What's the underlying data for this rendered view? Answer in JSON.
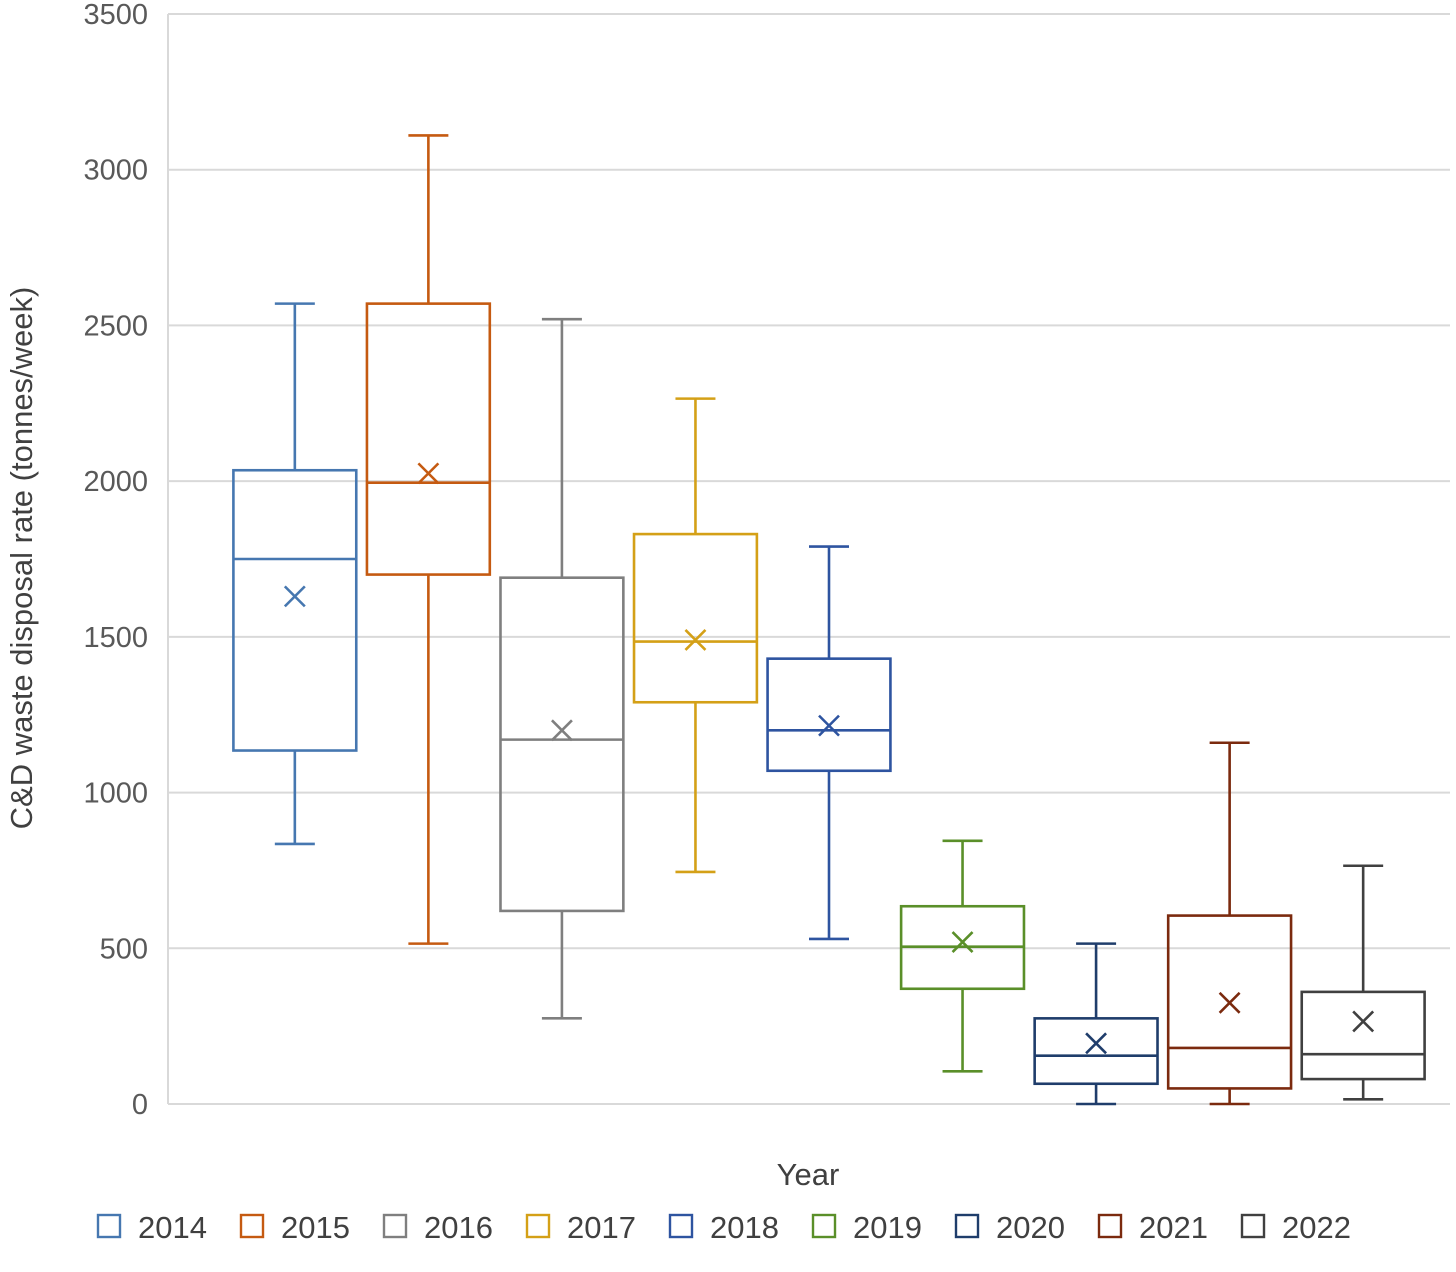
{
  "chart_data": {
    "type": "box",
    "xlabel": "Year",
    "ylabel": "C&D waste disposal rate (tonnes/week)",
    "ylim": [
      0,
      3500
    ],
    "yticks": [
      "0",
      "500",
      "1000",
      "1500",
      "2000",
      "2500",
      "3000",
      "3500"
    ],
    "grid": "horizontal",
    "legend_position": "bottom",
    "series": [
      {
        "name": "2014",
        "color": "#4677B0",
        "min": 835,
        "q1": 1135,
        "median": 1750,
        "q3": 2035,
        "max": 2570,
        "mean": 1630
      },
      {
        "name": "2015",
        "color": "#C55A11",
        "min": 515,
        "q1": 1700,
        "median": 1995,
        "q3": 2570,
        "max": 3110,
        "mean": 2025
      },
      {
        "name": "2016",
        "color": "#7F7F7F",
        "min": 275,
        "q1": 620,
        "median": 1170,
        "q3": 1690,
        "max": 2520,
        "mean": 1200
      },
      {
        "name": "2017",
        "color": "#D4A017",
        "min": 745,
        "q1": 1290,
        "median": 1485,
        "q3": 1830,
        "max": 2265,
        "mean": 1490
      },
      {
        "name": "2018",
        "color": "#2E54A0",
        "min": 530,
        "q1": 1070,
        "median": 1200,
        "q3": 1430,
        "max": 1790,
        "mean": 1215
      },
      {
        "name": "2019",
        "color": "#5A8F29",
        "min": 105,
        "q1": 370,
        "median": 505,
        "q3": 635,
        "max": 845,
        "mean": 520
      },
      {
        "name": "2020",
        "color": "#1F3D6B",
        "min": 0,
        "q1": 65,
        "median": 155,
        "q3": 275,
        "max": 515,
        "mean": 195
      },
      {
        "name": "2021",
        "color": "#7B2A0E",
        "min": 0,
        "q1": 50,
        "median": 180,
        "q3": 605,
        "max": 1160,
        "mean": 325
      },
      {
        "name": "2022",
        "color": "#404040",
        "min": 15,
        "q1": 80,
        "median": 160,
        "q3": 360,
        "max": 765,
        "mean": 265
      }
    ]
  }
}
